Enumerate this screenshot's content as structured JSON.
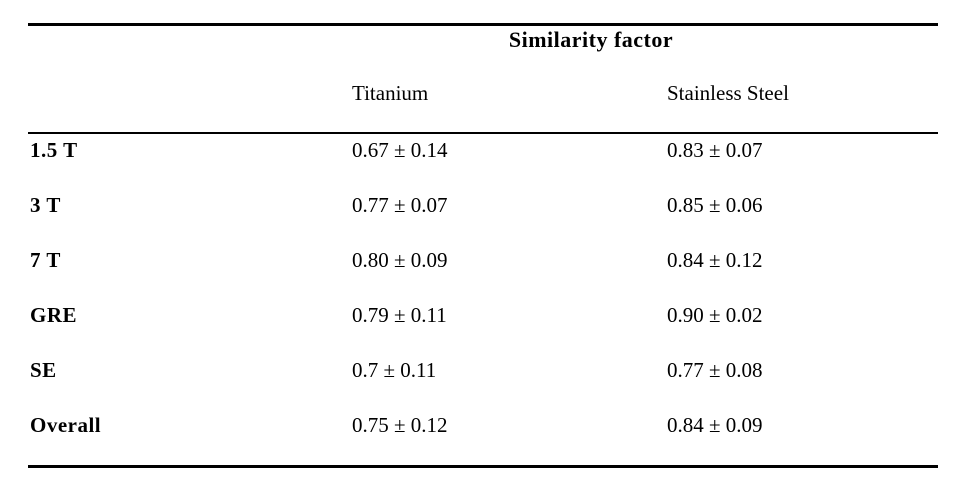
{
  "colors": {
    "text": "#000000",
    "background": "#ffffff",
    "rule": "#000000"
  },
  "table": {
    "title": "Similarity factor",
    "columns": [
      "Titanium",
      "Stainless Steel"
    ],
    "rows": [
      {
        "label": "1.5 T",
        "values": [
          "0.67 ± 0.14",
          "0.83 ± 0.07"
        ]
      },
      {
        "label": "3 T",
        "values": [
          "0.77 ± 0.07",
          "0.85 ± 0.06"
        ]
      },
      {
        "label": "7 T",
        "values": [
          "0.80 ± 0.09",
          "0.84 ± 0.12"
        ]
      },
      {
        "label": "GRE",
        "values": [
          "0.79 ± 0.11",
          "0.90 ± 0.02"
        ]
      },
      {
        "label": "SE",
        "values": [
          "0.7 ± 0.11",
          "0.77 ± 0.08"
        ]
      },
      {
        "label": "Overall",
        "values": [
          "0.75 ± 0.12",
          "0.84 ± 0.09"
        ]
      }
    ]
  }
}
